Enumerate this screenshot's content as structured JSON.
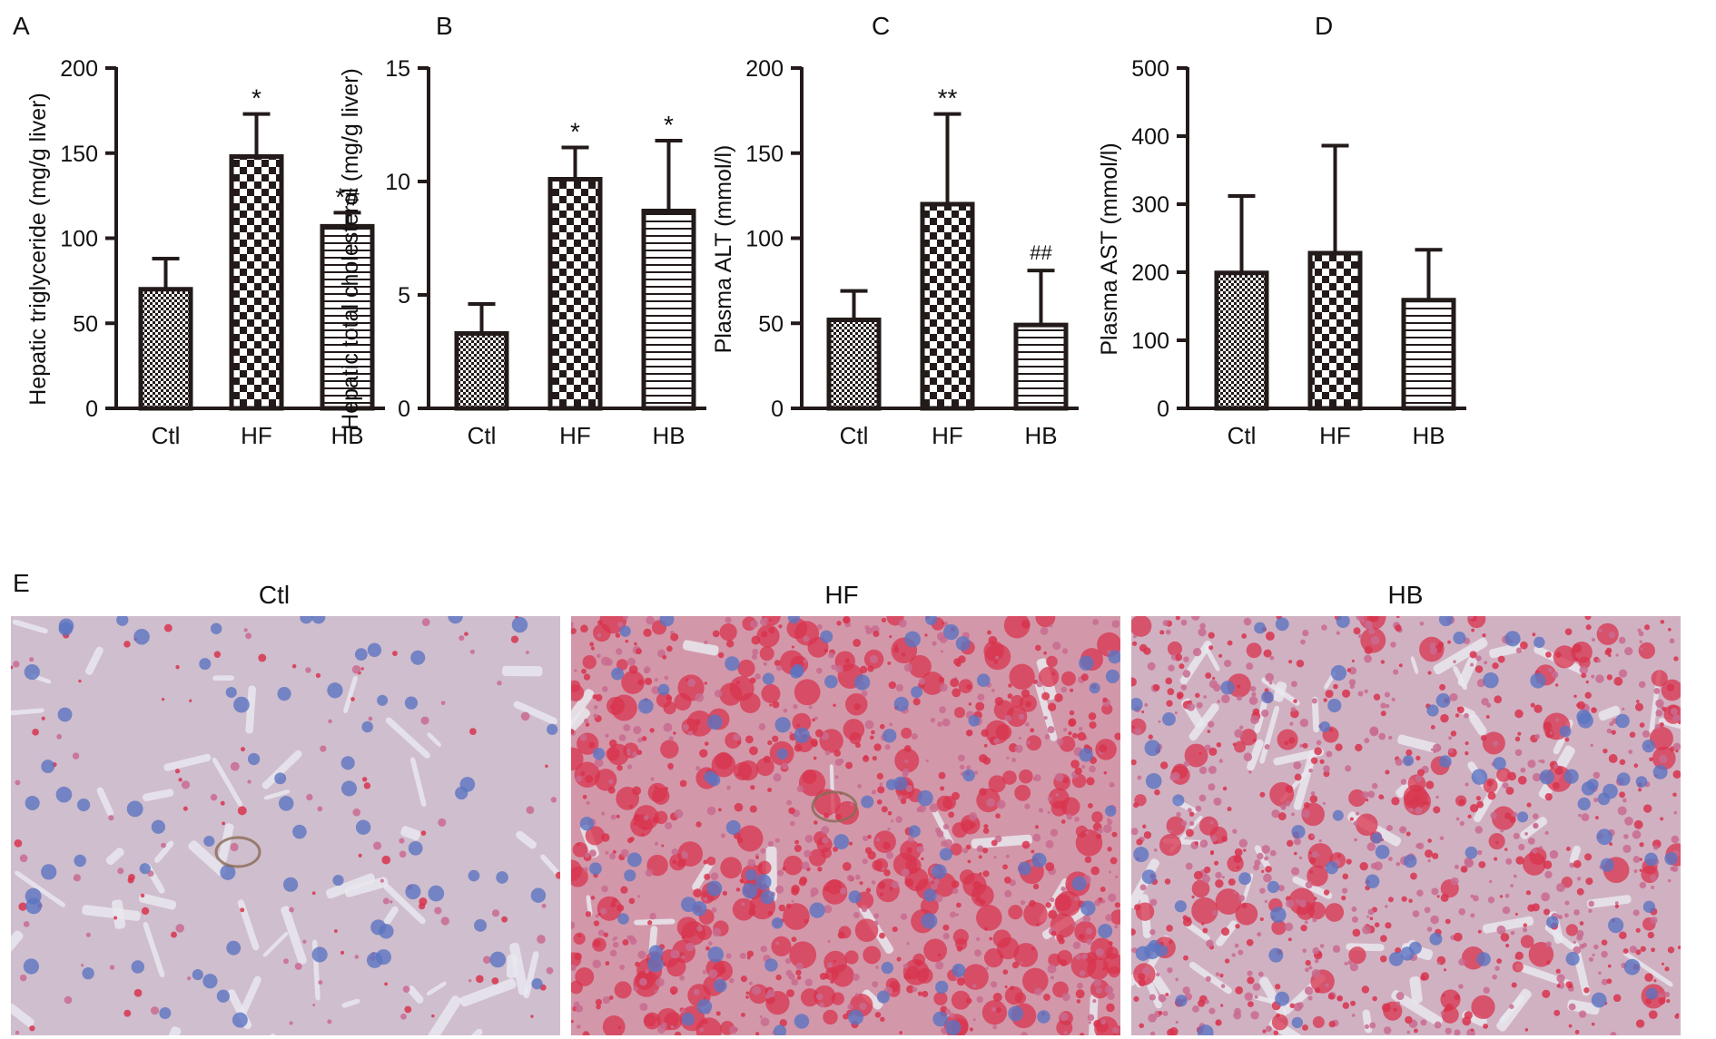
{
  "panel_labels": {
    "a": "A",
    "b": "B",
    "c": "C",
    "d": "D",
    "e": "E"
  },
  "micrograph_titles": [
    "Ctl",
    "HF",
    "HB"
  ],
  "colors": {
    "ink": "#231a1a",
    "tissue_background": "#cfcedc",
    "nucleus": "#5b74c2",
    "lipid_droplet": "#d8344d",
    "lipid_pink": "#c96b8f",
    "sinusoid": "#e9e8ef",
    "vessel_wall": "#8a6a55"
  },
  "chart_data": [
    {
      "panel": "A",
      "type": "bar",
      "categories": [
        "Ctl",
        "HF",
        "HB"
      ],
      "values": [
        70,
        148,
        107
      ],
      "errors": [
        18,
        25,
        8
      ],
      "annotations": [
        "",
        "*",
        "*#"
      ],
      "patterns": [
        "fine-check",
        "checkerboard",
        "horizontal-lines"
      ],
      "ylabel": "Hepatic triglyceride (mg/g liver)",
      "ylim": [
        0,
        200
      ],
      "yticks": [
        0,
        50,
        100,
        150,
        200
      ]
    },
    {
      "panel": "B",
      "type": "bar",
      "categories": [
        "Ctl",
        "HF",
        "HB"
      ],
      "values": [
        3.3,
        10.1,
        8.7
      ],
      "errors": [
        1.3,
        1.4,
        3.1
      ],
      "annotations": [
        "",
        "*",
        "*"
      ],
      "patterns": [
        "fine-check",
        "checkerboard",
        "horizontal-lines"
      ],
      "ylabel": "Hepatic total cholesterol (mg/g liver)",
      "ylim": [
        0,
        15
      ],
      "yticks": [
        0,
        5,
        10,
        15
      ]
    },
    {
      "panel": "C",
      "type": "bar",
      "categories": [
        "Ctl",
        "HF",
        "HB"
      ],
      "values": [
        52,
        120,
        49
      ],
      "errors": [
        17,
        53,
        32
      ],
      "annotations": [
        "",
        "**",
        "##"
      ],
      "patterns": [
        "fine-check",
        "checkerboard",
        "horizontal-lines"
      ],
      "ylabel": "Plasma ALT (mmol/l)",
      "ylim": [
        0,
        200
      ],
      "yticks": [
        0,
        50,
        100,
        150,
        200
      ]
    },
    {
      "panel": "D",
      "type": "bar",
      "categories": [
        "Ctl",
        "HF",
        "HB"
      ],
      "values": [
        199,
        228,
        159
      ],
      "errors": [
        113,
        158,
        74
      ],
      "annotations": [
        "",
        "",
        ""
      ],
      "patterns": [
        "fine-check",
        "checkerboard",
        "horizontal-lines"
      ],
      "ylabel": "Plasma AST (mmol/l)",
      "ylim": [
        0,
        500
      ],
      "yticks": [
        0,
        100,
        200,
        300,
        400,
        500
      ]
    }
  ]
}
